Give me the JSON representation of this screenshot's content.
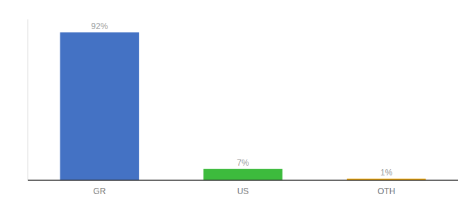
{
  "chart_data": {
    "type": "bar",
    "categories": [
      "GR",
      "US",
      "OTH"
    ],
    "values": [
      92,
      7,
      1
    ],
    "value_labels": [
      "92%",
      "7%",
      "1%"
    ],
    "colors": [
      "#4472c4",
      "#3dbb3d",
      "#f0a500"
    ],
    "ylim": [
      0,
      100
    ],
    "data_labels": true,
    "tick_labels": "x",
    "grid": false
  }
}
